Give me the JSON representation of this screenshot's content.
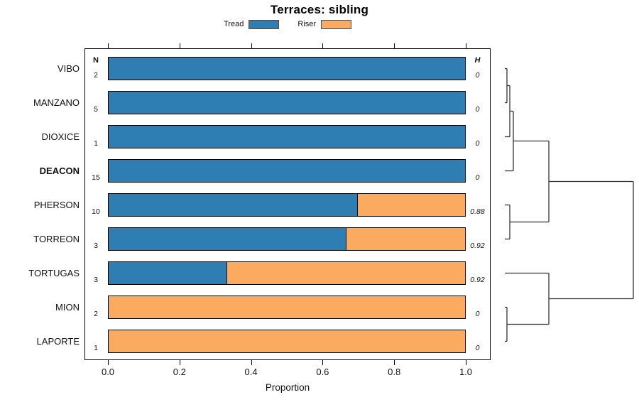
{
  "title": "Terraces: sibling",
  "legend": [
    {
      "label": "Tread",
      "color": "#2e7eb3"
    },
    {
      "label": "Riser",
      "color": "#fbab60"
    }
  ],
  "columns": {
    "n_header": "N",
    "h_header": "H"
  },
  "chart_data": {
    "type": "bar",
    "orientation": "horizontal",
    "stacked": true,
    "title": "Terraces: sibling",
    "xlabel": "Proportion",
    "xlim": [
      0,
      1
    ],
    "x_ticks": [
      "0.0",
      "0.2",
      "0.4",
      "0.6",
      "0.8",
      "1.0"
    ],
    "legend_position": "top",
    "categories": [
      "VIBO",
      "MANZANO",
      "DIOXICE",
      "DEACON",
      "PHERSON",
      "TORREON",
      "TORTUGAS",
      "MION",
      "LAPORTE"
    ],
    "series": [
      {
        "name": "Tread",
        "color": "#2e7eb3",
        "values": [
          1,
          1,
          1,
          1,
          0.7,
          0.667,
          0.333,
          0,
          0
        ]
      },
      {
        "name": "Riser",
        "color": "#fbab60",
        "values": [
          0,
          0,
          0,
          0,
          0.3,
          0.333,
          0.667,
          1,
          1
        ]
      }
    ],
    "rows": [
      {
        "category": "VIBO",
        "n": 2,
        "tread": 1,
        "riser": 0,
        "h": "0",
        "bold": false
      },
      {
        "category": "MANZANO",
        "n": 5,
        "tread": 1,
        "riser": 0,
        "h": "0",
        "bold": false
      },
      {
        "category": "DIOXICE",
        "n": 1,
        "tread": 1,
        "riser": 0,
        "h": "0",
        "bold": false
      },
      {
        "category": "DEACON",
        "n": 15,
        "tread": 1,
        "riser": 0,
        "h": "0",
        "bold": true
      },
      {
        "category": "PHERSON",
        "n": 10,
        "tread": 0.7,
        "riser": 0.3,
        "h": "0.88",
        "bold": false
      },
      {
        "category": "TORREON",
        "n": 3,
        "tread": 0.667,
        "riser": 0.333,
        "h": "0.92",
        "bold": false
      },
      {
        "category": "TORTUGAS",
        "n": 3,
        "tread": 0.333,
        "riser": 0.667,
        "h": "0.92",
        "bold": false
      },
      {
        "category": "MION",
        "n": 2,
        "tread": 0,
        "riser": 1,
        "h": "0",
        "bold": false
      },
      {
        "category": "LAPORTE",
        "n": 1,
        "tread": 0,
        "riser": 1,
        "h": "0",
        "bold": false
      }
    ],
    "dendrogram": {
      "leaf_order": [
        "VIBO",
        "MANZANO",
        "DIOXICE",
        "DEACON",
        "PHERSON",
        "TORREON",
        "TORTUGAS",
        "MION",
        "LAPORTE"
      ],
      "line_color": "#333333",
      "segments": [
        [
          0,
          0,
          3,
          0
        ],
        [
          0,
          1,
          3,
          1
        ],
        [
          3,
          0,
          3,
          1
        ],
        [
          3,
          0.5,
          7,
          0.5
        ],
        [
          0,
          2,
          7,
          2
        ],
        [
          7,
          0.5,
          7,
          2
        ],
        [
          7,
          1.25,
          12,
          1.25
        ],
        [
          0,
          3,
          12,
          3
        ],
        [
          12,
          1.25,
          12,
          3
        ],
        [
          12,
          2.125,
          62,
          2.125
        ],
        [
          0,
          4,
          7,
          4
        ],
        [
          0,
          5,
          7,
          5
        ],
        [
          7,
          4,
          7,
          5
        ],
        [
          7,
          4.5,
          62,
          4.5
        ],
        [
          62,
          2.125,
          62,
          4.5
        ],
        [
          62,
          3.3125,
          181,
          3.3125
        ],
        [
          0,
          6,
          62,
          6
        ],
        [
          0,
          7,
          3,
          7
        ],
        [
          0,
          8,
          3,
          8
        ],
        [
          3,
          7,
          3,
          8
        ],
        [
          3,
          7.5,
          62,
          7.5
        ],
        [
          62,
          6,
          62,
          7.5
        ],
        [
          62,
          6.75,
          181,
          6.75
        ],
        [
          181,
          3.3125,
          181,
          6.75
        ]
      ]
    }
  }
}
